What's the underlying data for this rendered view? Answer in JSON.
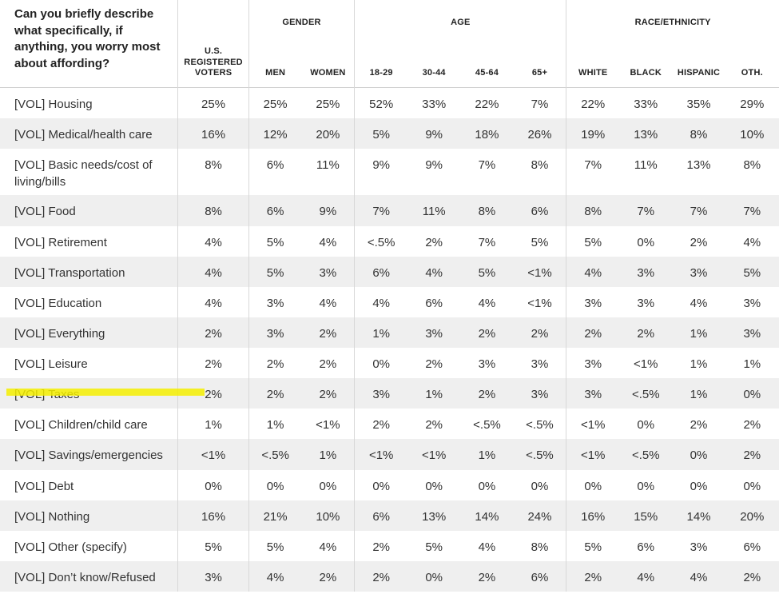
{
  "chart_data": {
    "type": "table",
    "question": "Can you briefly describe what specifically, if anything, you worry most about affording?",
    "total_header": "U.S. REGISTERED VOTERS",
    "groups": [
      {
        "name": "GENDER",
        "columns": [
          "MEN",
          "WOMEN"
        ]
      },
      {
        "name": "AGE",
        "columns": [
          "18-29",
          "30-44",
          "45-64",
          "65+"
        ]
      },
      {
        "name": "RACE/ETHNICITY",
        "columns": [
          "WHITE",
          "BLACK",
          "HISPANIC",
          "OTH."
        ]
      }
    ],
    "highlighted_row": "[VOL] Taxes",
    "highlight_color": "#f4ef00",
    "rows": [
      {
        "label": "[VOL] Housing",
        "values": [
          "25%",
          "25%",
          "25%",
          "52%",
          "33%",
          "22%",
          "7%",
          "22%",
          "33%",
          "35%",
          "29%"
        ]
      },
      {
        "label": "[VOL] Medical/health care",
        "values": [
          "16%",
          "12%",
          "20%",
          "5%",
          "9%",
          "18%",
          "26%",
          "19%",
          "13%",
          "8%",
          "10%"
        ]
      },
      {
        "label": "[VOL] Basic needs/cost of living/bills",
        "values": [
          "8%",
          "6%",
          "11%",
          "9%",
          "9%",
          "7%",
          "8%",
          "7%",
          "11%",
          "13%",
          "8%"
        ]
      },
      {
        "label": "[VOL] Food",
        "values": [
          "8%",
          "6%",
          "9%",
          "7%",
          "11%",
          "8%",
          "6%",
          "8%",
          "7%",
          "7%",
          "7%"
        ]
      },
      {
        "label": "[VOL] Retirement",
        "values": [
          "4%",
          "5%",
          "4%",
          "<.5%",
          "2%",
          "7%",
          "5%",
          "5%",
          "0%",
          "2%",
          "4%"
        ]
      },
      {
        "label": "[VOL] Transportation",
        "values": [
          "4%",
          "5%",
          "3%",
          "6%",
          "4%",
          "5%",
          "<1%",
          "4%",
          "3%",
          "3%",
          "5%"
        ]
      },
      {
        "label": "[VOL] Education",
        "values": [
          "4%",
          "3%",
          "4%",
          "4%",
          "6%",
          "4%",
          "<1%",
          "3%",
          "3%",
          "4%",
          "3%"
        ]
      },
      {
        "label": "[VOL] Everything",
        "values": [
          "2%",
          "3%",
          "2%",
          "1%",
          "3%",
          "2%",
          "2%",
          "2%",
          "2%",
          "1%",
          "3%"
        ]
      },
      {
        "label": "[VOL] Leisure",
        "values": [
          "2%",
          "2%",
          "2%",
          "0%",
          "2%",
          "3%",
          "3%",
          "3%",
          "<1%",
          "1%",
          "1%"
        ]
      },
      {
        "label": "[VOL] Taxes",
        "values": [
          "2%",
          "2%",
          "2%",
          "3%",
          "1%",
          "2%",
          "3%",
          "3%",
          "<.5%",
          "1%",
          "0%"
        ]
      },
      {
        "label": "[VOL] Children/child care",
        "values": [
          "1%",
          "1%",
          "<1%",
          "2%",
          "2%",
          "<.5%",
          "<.5%",
          "<1%",
          "0%",
          "2%",
          "2%"
        ]
      },
      {
        "label": "[VOL] Savings/emergencies",
        "values": [
          "<1%",
          "<.5%",
          "1%",
          "<1%",
          "<1%",
          "1%",
          "<.5%",
          "<1%",
          "<.5%",
          "0%",
          "2%"
        ]
      },
      {
        "label": "[VOL] Debt",
        "values": [
          "0%",
          "0%",
          "0%",
          "0%",
          "0%",
          "0%",
          "0%",
          "0%",
          "0%",
          "0%",
          "0%"
        ]
      },
      {
        "label": "[VOL] Nothing",
        "values": [
          "16%",
          "21%",
          "10%",
          "6%",
          "13%",
          "14%",
          "24%",
          "16%",
          "15%",
          "14%",
          "20%"
        ]
      },
      {
        "label": "[VOL] Other (specify)",
        "values": [
          "5%",
          "5%",
          "4%",
          "2%",
          "5%",
          "4%",
          "8%",
          "5%",
          "6%",
          "3%",
          "6%"
        ]
      },
      {
        "label": "[VOL] Don’t know/Refused",
        "values": [
          "3%",
          "4%",
          "2%",
          "2%",
          "0%",
          "2%",
          "6%",
          "2%",
          "4%",
          "4%",
          "2%"
        ]
      }
    ]
  }
}
